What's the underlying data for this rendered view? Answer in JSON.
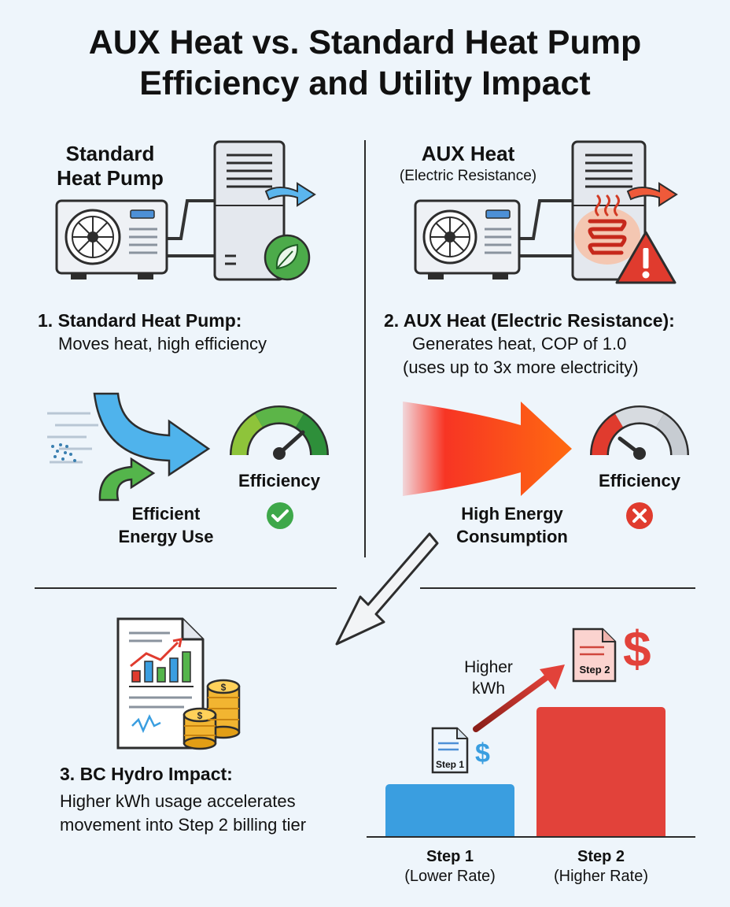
{
  "title": {
    "line1": "AUX Heat vs. Standard Heat Pump",
    "line2": "Efficiency and Utility Impact"
  },
  "left_panel": {
    "illustration_title_line1": "Standard",
    "illustration_title_line2": "Heat Pump",
    "heading": "1. Standard Heat Pump:",
    "description": "Moves heat, high efficiency",
    "flow_label_line1": "Efficient",
    "flow_label_line2": "Energy Use",
    "gauge_label": "Efficiency",
    "status_icon": "check-circle-icon"
  },
  "right_panel": {
    "illustration_title": "AUX Heat",
    "illustration_subtitle": "(Electric Resistance)",
    "heading": "2. AUX Heat (Electric Resistance):",
    "description_line1": "Generates heat, COP of 1.0",
    "description_line2": "(uses up to 3x more electricity)",
    "flow_label_line1": "High Energy",
    "flow_label_line2": "Consumption",
    "gauge_label": "Efficiency",
    "status_icon": "x-circle-icon"
  },
  "bottom_panel": {
    "heading": "3. BC Hydro Impact:",
    "description": "Higher kWh usage accelerates movement into Step 2 billing tier",
    "arrow_label_line1": "Higher",
    "arrow_label_line2": "kWh",
    "doc1_label": "Step 1",
    "doc2_label": "Step 2",
    "currency_symbol": "$",
    "bars": [
      {
        "name": "Step 1",
        "rate": "(Lower Rate)",
        "color": "#3a9ee0"
      },
      {
        "name": "Step 2",
        "rate": "(Higher Rate)",
        "color": "#e2423a"
      }
    ]
  },
  "colors": {
    "efficient_green": "#3aa845",
    "efficient_blue": "#4fb3ec",
    "warning_red": "#e03b2e",
    "heat_orange": "#f26a1b"
  }
}
